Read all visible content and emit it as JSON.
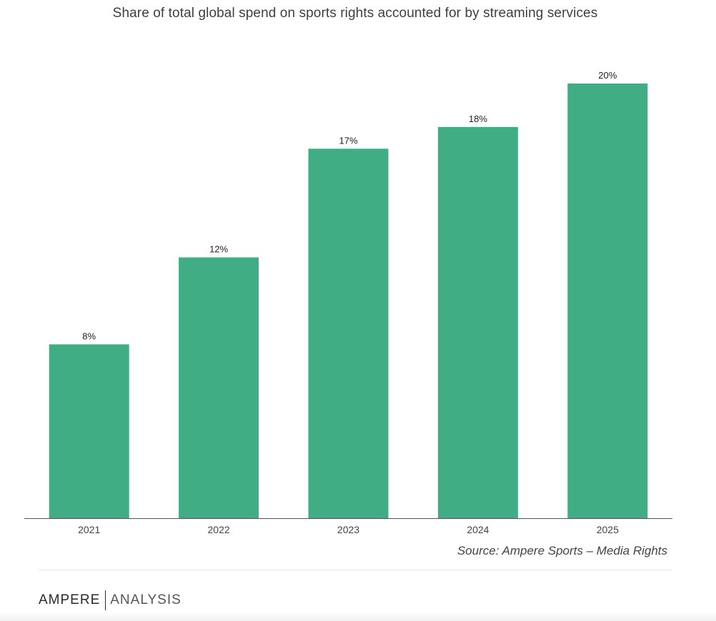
{
  "chart_data": {
    "type": "bar",
    "title": "Share of total global spend on sports rights accounted for by streaming services",
    "categories": [
      "2021",
      "2022",
      "2023",
      "2024",
      "2025"
    ],
    "values": [
      8,
      12,
      17,
      18,
      20
    ],
    "data_labels": [
      "8%",
      "12%",
      "17%",
      "18%",
      "20%"
    ],
    "value_unit": "%",
    "ylim": [
      0,
      20
    ],
    "bar_color": "#41ad84",
    "grid": false,
    "legend": "none"
  },
  "source": "Source: Ampere Sports – Media Rights",
  "brand": {
    "primary": "AMPERE",
    "secondary": "ANALYSIS"
  }
}
